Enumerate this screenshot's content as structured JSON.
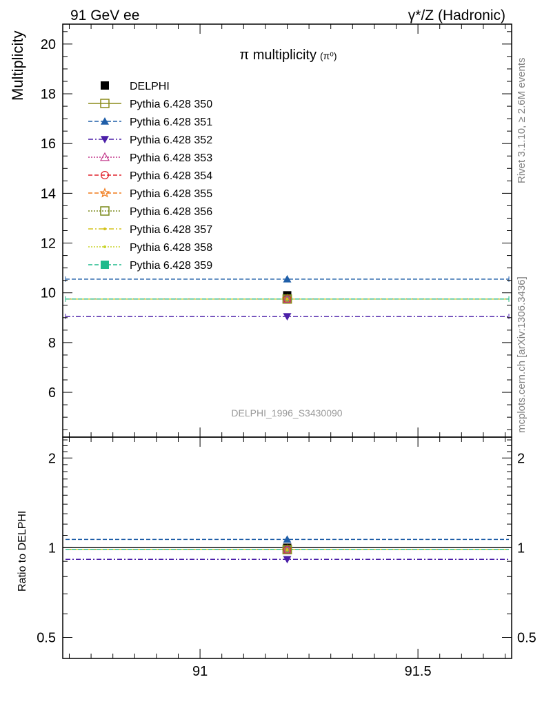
{
  "header": {
    "left": "91 GeV ee",
    "right": "γ*/Z (Hadronic)"
  },
  "side": {
    "rivet": "Rivet 3.1.10, ≥ 2.6M events",
    "mcplots": "mcplots.cern.ch [arXiv:1306.3436]"
  },
  "chart_data": {
    "type": "scatter",
    "title": "π multiplicity",
    "title_sub": "(π⁰)",
    "analysis_label": "DELPHI_1996_S3430090",
    "main": {
      "ylabel": "Multiplicity",
      "ylim": [
        4.2,
        20.8
      ],
      "yticks": [
        6,
        8,
        10,
        12,
        14,
        16,
        18,
        20
      ],
      "ytick_labels": [
        "6",
        "8",
        "10",
        "12",
        "14",
        "16",
        "18",
        "20"
      ]
    },
    "ratio": {
      "ylabel": "Ratio to DELPHI",
      "ylim": [
        0.425,
        2.35
      ],
      "log": true,
      "yticks": [
        0.5,
        1,
        2
      ],
      "ytick_labels": [
        "0.5",
        "1",
        "2"
      ]
    },
    "xlim": [
      90.685,
      91.715
    ],
    "xticks": [
      91,
      91.5
    ],
    "xtick_labels": [
      "91",
      "91.5"
    ],
    "x_point": 91.2,
    "grid": false,
    "legend_position": "top-left",
    "data": {
      "name": "DELPHI",
      "x": 91.2,
      "y": 9.9,
      "marker": "square-filled",
      "color": "#000000"
    },
    "series": [
      {
        "name": "Pythia 6.428 350",
        "y": 9.75,
        "ratio": 0.985,
        "color": "#8c8c1a",
        "dash": "solid",
        "marker": "square-open"
      },
      {
        "name": "Pythia 6.428 351",
        "y": 10.55,
        "ratio": 1.066,
        "color": "#1f5ea8",
        "dash": "dashed",
        "marker": "triangle-up"
      },
      {
        "name": "Pythia 6.428 352",
        "y": 9.05,
        "ratio": 0.914,
        "color": "#4b1fa8",
        "dash": "dashdot",
        "marker": "triangle-down"
      },
      {
        "name": "Pythia 6.428 353",
        "y": 9.75,
        "ratio": 0.985,
        "color": "#c2368a",
        "dash": "dotted",
        "marker": "triangle-up-open"
      },
      {
        "name": "Pythia 6.428 354",
        "y": 9.75,
        "ratio": 0.985,
        "color": "#e0202a",
        "dash": "dashed",
        "marker": "circle-open"
      },
      {
        "name": "Pythia 6.428 355",
        "y": 9.75,
        "ratio": 0.985,
        "color": "#f07a1a",
        "dash": "dashed",
        "marker": "star-open"
      },
      {
        "name": "Pythia 6.428 356",
        "y": 9.75,
        "ratio": 0.985,
        "color": "#7a8a1a",
        "dash": "dotted",
        "marker": "square-open"
      },
      {
        "name": "Pythia 6.428 357",
        "y": 9.75,
        "ratio": 0.985,
        "color": "#d4c21a",
        "dash": "dashdot",
        "marker": "small-dot"
      },
      {
        "name": "Pythia 6.428 358",
        "y": 9.75,
        "ratio": 0.985,
        "color": "#c8d42a",
        "dash": "dotted",
        "marker": "small-dot"
      },
      {
        "name": "Pythia 6.428 359",
        "y": 9.75,
        "ratio": 0.985,
        "color": "#1fba8c",
        "dash": "dashed",
        "marker": "square-filled"
      }
    ]
  }
}
